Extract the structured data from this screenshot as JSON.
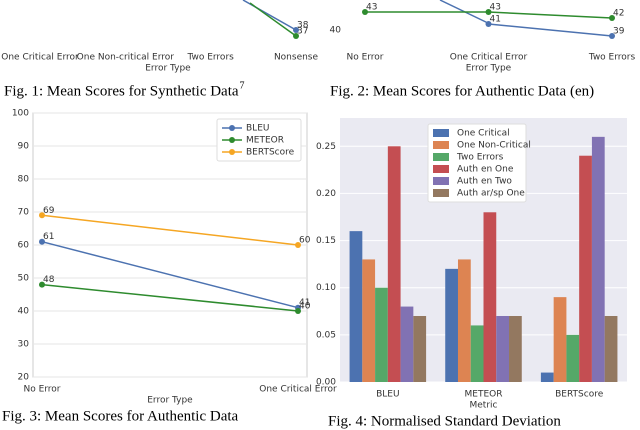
{
  "chart_data": [
    {
      "type": "line",
      "caption": "Fig. 1: Mean Scores for Synthetic Data",
      "caption_footnote": "7",
      "x_label": "Error Type",
      "categories": [
        "One Critical Error",
        "One Non-critical Error",
        "Two Errors",
        "Nonsense"
      ],
      "series": [
        {
          "color": "#4c72b0",
          "values": [
            null,
            null,
            null,
            38
          ]
        },
        {
          "color": "#2e8b2e",
          "values": [
            null,
            null,
            null,
            37
          ]
        }
      ],
      "ylim": [
        35.5,
        43
      ],
      "yticks": [],
      "grid": false
    },
    {
      "type": "line",
      "caption": "Fig. 2: Mean Scores for Authentic Data (en)",
      "x_label": "Error Type",
      "categories": [
        "No Error",
        "One Critical Error",
        "Two Errors"
      ],
      "series": [
        {
          "color": "#4c72b0",
          "values": [
            null,
            41,
            39
          ]
        },
        {
          "color": "#2e8b2e",
          "values": [
            43,
            43,
            42
          ]
        }
      ],
      "ylim": [
        37.5,
        45
      ],
      "yticks": [
        40
      ],
      "grid": false
    },
    {
      "type": "line",
      "caption": "Fig. 3: Mean Scores for Authentic Data",
      "x_label": "Error Type",
      "categories": [
        "No Error",
        "One Critical Error"
      ],
      "series": [
        {
          "name": "BLEU",
          "color": "#4c72b0",
          "values": [
            61,
            41
          ]
        },
        {
          "name": "METEOR",
          "color": "#2e8b2e",
          "values": [
            48,
            40
          ]
        },
        {
          "name": "BERTScore",
          "color": "#f5a623",
          "values": [
            69,
            60
          ]
        }
      ],
      "ylim": [
        20,
        100
      ],
      "yticks": [
        20,
        30,
        40,
        50,
        60,
        70,
        80,
        90,
        100
      ],
      "grid": true,
      "legend": "upper right"
    },
    {
      "type": "bar",
      "caption": "Fig. 4: Normalised Standard Deviation",
      "x_label": "Metric",
      "categories": [
        "BLEU",
        "METEOR",
        "BERTScore"
      ],
      "series": [
        {
          "name": "One Critical",
          "color": "#4c72b0",
          "values": [
            0.16,
            0.12,
            0.01
          ]
        },
        {
          "name": "One Non-Critical",
          "color": "#dd8452",
          "values": [
            0.13,
            0.13,
            0.09
          ]
        },
        {
          "name": "Two Errors",
          "color": "#55a868",
          "values": [
            0.1,
            0.06,
            0.05
          ]
        },
        {
          "name": "Auth en One",
          "color": "#c44e52",
          "values": [
            0.25,
            0.18,
            0.24
          ]
        },
        {
          "name": "Auth en Two",
          "color": "#8172b3",
          "values": [
            0.08,
            0.07,
            0.26
          ]
        },
        {
          "name": "Auth ar/sp One",
          "color": "#937860",
          "values": [
            0.07,
            0.07,
            0.07
          ]
        }
      ],
      "ylim": [
        0,
        0.28
      ],
      "yticks": [
        {
          "value": 0,
          "label": "0.00"
        },
        {
          "value": 0.05,
          "label": "0.05"
        },
        {
          "value": 0.1,
          "label": "0.10"
        },
        {
          "value": 0.15,
          "label": "0.15"
        },
        {
          "value": 0.2,
          "label": "0.20"
        },
        {
          "value": 0.25,
          "label": "0.25"
        }
      ],
      "grid": true,
      "legend": "upper left"
    }
  ]
}
